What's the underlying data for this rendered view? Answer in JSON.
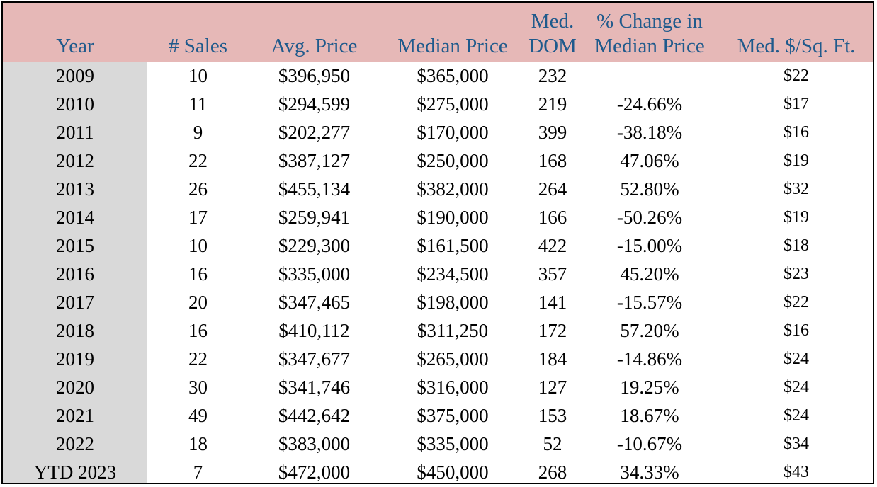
{
  "chart_data": {
    "type": "table",
    "columns": [
      {
        "key": "year",
        "lines": [
          "Year"
        ]
      },
      {
        "key": "sales",
        "lines": [
          "# Sales"
        ]
      },
      {
        "key": "avg_price",
        "lines": [
          "Avg. Price"
        ]
      },
      {
        "key": "median_price",
        "lines": [
          "Median Price"
        ]
      },
      {
        "key": "med_dom",
        "lines": [
          "Med.",
          "DOM"
        ]
      },
      {
        "key": "pct_change",
        "lines": [
          "% Change in",
          "Median Price"
        ]
      },
      {
        "key": "med_sqft",
        "lines": [
          "Med. $/Sq. Ft."
        ]
      }
    ],
    "rows": [
      [
        "2009",
        "10",
        "$396,950",
        "$365,000",
        "232",
        "",
        "$22"
      ],
      [
        "2010",
        "11",
        "$294,599",
        "$275,000",
        "219",
        "-24.66%",
        "$17"
      ],
      [
        "2011",
        "9",
        "$202,277",
        "$170,000",
        "399",
        "-38.18%",
        "$16"
      ],
      [
        "2012",
        "22",
        "$387,127",
        "$250,000",
        "168",
        "47.06%",
        "$19"
      ],
      [
        "2013",
        "26",
        "$455,134",
        "$382,000",
        "264",
        "52.80%",
        "$32"
      ],
      [
        "2014",
        "17",
        "$259,941",
        "$190,000",
        "166",
        "-50.26%",
        "$19"
      ],
      [
        "2015",
        "10",
        "$229,300",
        "$161,500",
        "422",
        "-15.00%",
        "$18"
      ],
      [
        "2016",
        "16",
        "$335,000",
        "$234,500",
        "357",
        "45.20%",
        "$23"
      ],
      [
        "2017",
        "20",
        "$347,465",
        "$198,000",
        "141",
        "-15.57%",
        "$22"
      ],
      [
        "2018",
        "16",
        "$410,112",
        "$311,250",
        "172",
        "57.20%",
        "$16"
      ],
      [
        "2019",
        "22",
        "$347,677",
        "$265,000",
        "184",
        "-14.86%",
        "$24"
      ],
      [
        "2020",
        "30",
        "$341,746",
        "$316,000",
        "127",
        "19.25%",
        "$24"
      ],
      [
        "2021",
        "49",
        "$442,642",
        "$375,000",
        "153",
        "18.67%",
        "$24"
      ],
      [
        "2022",
        "18",
        "$383,000",
        "$335,000",
        "52",
        "-10.67%",
        "$34"
      ],
      [
        "YTD 2023",
        "7",
        "$472,000",
        "$450,000",
        "268",
        "34.33%",
        "$43"
      ]
    ]
  },
  "colors": {
    "header_background": "#e6b8b7",
    "header_text": "#1f5a8c",
    "year_column_background": "#d9d9d9",
    "body_text": "#000000",
    "border": "#000000"
  }
}
